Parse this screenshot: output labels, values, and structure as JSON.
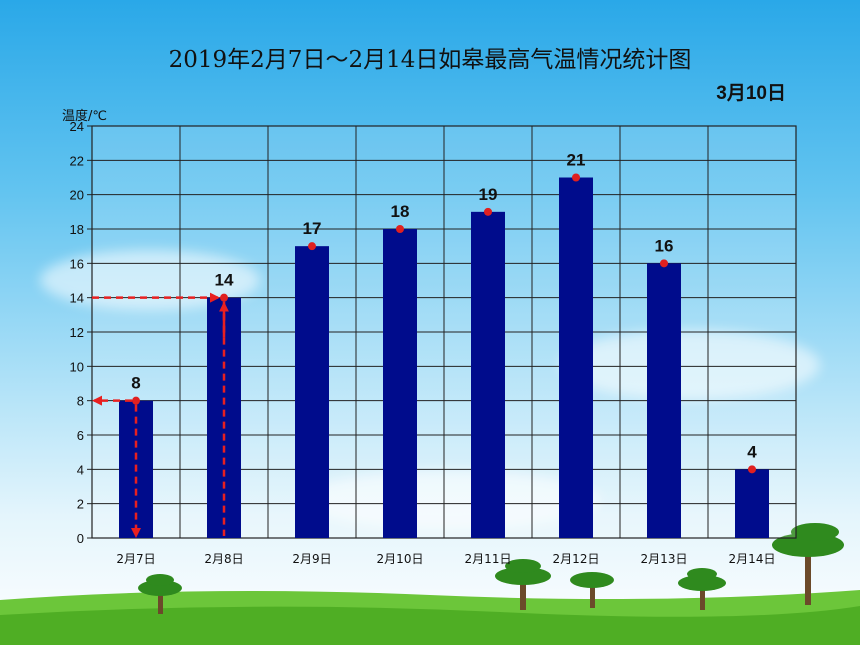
{
  "title": "2019年2月7日～2月14日如皋最高气温情况统计图",
  "date": "3月10日",
  "chart_data": {
    "type": "bar",
    "title": "2019年2月7日～2月14日如皋最高气温情况统计图",
    "ylabel": "温度/℃",
    "xlabel": "",
    "categories": [
      "2月7日",
      "2月8日",
      "2月9日",
      "2月10日",
      "2月11日",
      "2月12日",
      "2月13日",
      "2月14日"
    ],
    "values": [
      8,
      14,
      17,
      18,
      19,
      21,
      16,
      4
    ],
    "ylim": [
      0,
      24
    ],
    "yticks": [
      0,
      2,
      4,
      6,
      8,
      10,
      12,
      14,
      16,
      18,
      20,
      22,
      24
    ],
    "grid": true,
    "bar_color": "#000c8c",
    "point_color": "#e02020",
    "annotation_color": "#e82020"
  }
}
